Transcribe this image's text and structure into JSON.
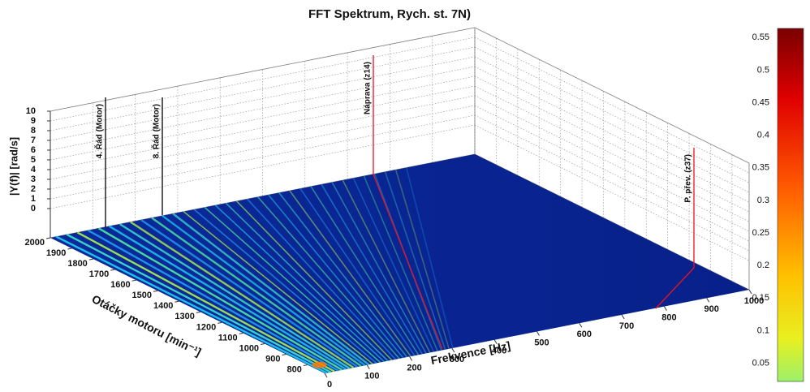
{
  "chart_data": {
    "type": "surface",
    "title": "FFT Spektrum, Rych. st. 7N)",
    "xlabel": "Frekvence [Hz]",
    "ylabel": "Otáčky motoru [min⁻¹]",
    "zlabel": "|Y(f)| [rad/s]",
    "xlim": [
      0,
      1000
    ],
    "xticks": [
      0,
      100,
      200,
      300,
      400,
      500,
      600,
      700,
      800,
      900,
      1000
    ],
    "ylim": [
      720,
      2000
    ],
    "yticks": [
      800,
      900,
      1000,
      1100,
      1200,
      1300,
      1400,
      1500,
      1600,
      1700,
      1800,
      1900,
      2000
    ],
    "zlim": [
      -3,
      10
    ],
    "zticks": [
      0,
      1,
      2,
      3,
      4,
      5,
      6,
      7,
      8,
      9,
      10
    ],
    "grid": true,
    "colorbar": {
      "clim": [
        0.022,
        0.564
      ],
      "ticks": [
        0.05,
        0.1,
        0.15,
        0.2,
        0.25,
        0.3,
        0.35,
        0.4,
        0.45,
        0.5,
        0.55
      ]
    },
    "annotations": [
      {
        "text": "4. Řád (Motor)",
        "color": "#000000"
      },
      {
        "text": "8. Řád (Motor)",
        "color": "#000000"
      },
      {
        "text": "Náprava (z14)",
        "color": "#e8141e"
      },
      {
        "text": "P. přev. (z37)",
        "color": "#e8141e"
      }
    ]
  }
}
